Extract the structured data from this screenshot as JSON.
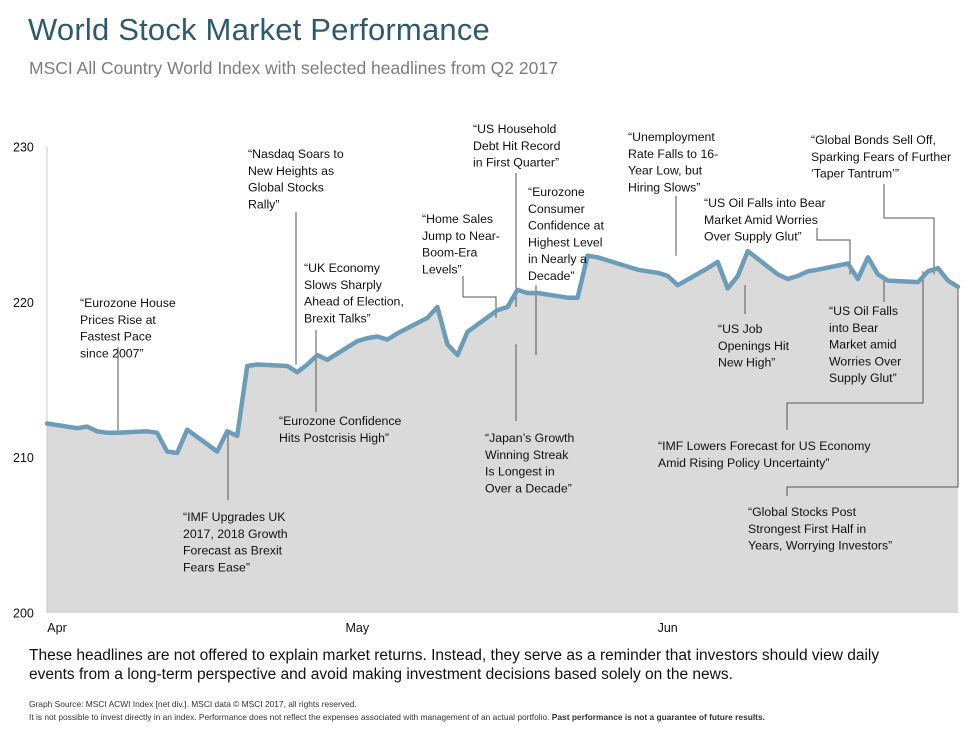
{
  "title": "World Stock Market Performance",
  "subtitle": "MSCI All Country World Index with selected headlines from Q2 2017",
  "note": "These headlines are not offered to explain market returns. Instead, they serve as a reminder that investors should view daily events from a long-term perspective and avoid making investment decisions based solely on the news.",
  "footer": {
    "source": "Graph Source: MSCI ACWI Index [net div.]. MSCI data © MSCI 2017, all rights reserved.",
    "disclaimer": "It is not possible to invest directly in an index. Performance does not reflect the expenses associated with management of an actual portfolio.",
    "disclaimer_bold": "Past performance is not a guarantee of future results."
  },
  "colors": {
    "line": "#6d9cb8",
    "fill": "#dadada",
    "connector": "#555555",
    "title": "#2e5a6e"
  },
  "chart_data": {
    "type": "area",
    "x": [
      "2017-03-31",
      "2017-04-03",
      "2017-04-04",
      "2017-04-05",
      "2017-04-06",
      "2017-04-07",
      "2017-04-10",
      "2017-04-11",
      "2017-04-12",
      "2017-04-13",
      "2017-04-14",
      "2017-04-17",
      "2017-04-18",
      "2017-04-19",
      "2017-04-20",
      "2017-04-21",
      "2017-04-24",
      "2017-04-25",
      "2017-04-26",
      "2017-04-27",
      "2017-04-28",
      "2017-05-01",
      "2017-05-02",
      "2017-05-03",
      "2017-05-04",
      "2017-05-05",
      "2017-05-08",
      "2017-05-09",
      "2017-05-10",
      "2017-05-11",
      "2017-05-12",
      "2017-05-15",
      "2017-05-16",
      "2017-05-17",
      "2017-05-18",
      "2017-05-19",
      "2017-05-22",
      "2017-05-23",
      "2017-05-24",
      "2017-05-25",
      "2017-05-26",
      "2017-05-29",
      "2017-05-30",
      "2017-05-31",
      "2017-06-01",
      "2017-06-02",
      "2017-06-05",
      "2017-06-06",
      "2017-06-07",
      "2017-06-08",
      "2017-06-09",
      "2017-06-12",
      "2017-06-13",
      "2017-06-14",
      "2017-06-15",
      "2017-06-16",
      "2017-06-19",
      "2017-06-20",
      "2017-06-21",
      "2017-06-22",
      "2017-06-23",
      "2017-06-26",
      "2017-06-27",
      "2017-06-28",
      "2017-06-29",
      "2017-06-30"
    ],
    "y": [
      212.2,
      211.9,
      212.0,
      211.7,
      211.6,
      211.6,
      211.7,
      211.6,
      210.4,
      210.3,
      211.8,
      210.4,
      211.7,
      211.4,
      215.9,
      216.0,
      215.9,
      215.5,
      216.0,
      216.6,
      216.3,
      217.5,
      217.7,
      217.8,
      217.6,
      218.0,
      219.0,
      219.7,
      217.3,
      216.6,
      218.1,
      219.5,
      219.7,
      220.8,
      220.6,
      220.6,
      220.3,
      220.3,
      223.0,
      222.9,
      222.7,
      222.1,
      222.0,
      221.9,
      221.7,
      221.1,
      222.2,
      222.6,
      220.9,
      221.7,
      223.3,
      221.8,
      221.5,
      221.7,
      222.0,
      222.1,
      222.5,
      221.5,
      222.9,
      221.8,
      221.4,
      221.3,
      222.0,
      222.2,
      221.4,
      221.0
    ],
    "x_ticks": [
      {
        "label": "Apr",
        "date": "2017-04-01"
      },
      {
        "label": "May",
        "date": "2017-05-01"
      },
      {
        "label": "Jun",
        "date": "2017-06-01"
      }
    ],
    "ylim": [
      200,
      230
    ],
    "y_ticks": [
      200,
      210,
      220,
      230
    ],
    "xlabel": "",
    "ylabel": "",
    "grid": false,
    "annotations": [
      {
        "date": "2017-04-05",
        "lines": [
          "“Eurozone House",
          "Prices Rise at",
          "Fastest Pace",
          "since 2007”"
        ]
      },
      {
        "date": "2017-04-11",
        "lines": [
          "“IMF Upgrades UK",
          "2017, 2018 Growth",
          "Forecast as Brexit",
          "Fears Ease”"
        ]
      },
      {
        "date": "2017-04-21",
        "lines": [
          "“Nasdaq Soars to",
          "New Heights as",
          "Global Stocks",
          "Rally”"
        ]
      },
      {
        "date": "2017-04-24",
        "lines": [
          "“Eurozone Confidence",
          "Hits Postcrisis High”"
        ]
      },
      {
        "date": "2017-04-24",
        "lines": [
          "“UK Economy",
          "Slows Sharply",
          "Ahead of Election,",
          "Brexit Talks”"
        ]
      },
      {
        "date": "2017-05-08",
        "lines": [
          "“Home Sales",
          "Jump to Near-",
          "Boom-Era",
          "Levels”"
        ]
      },
      {
        "date": "2017-05-09",
        "lines": [
          "“US Household",
          "Debt Hit Record",
          "in First Quarter”"
        ]
      },
      {
        "date": "2017-05-11",
        "lines": [
          "“Eurozone",
          "Consumer",
          "Confidence at",
          "Highest Level",
          "in Nearly a",
          "Decade”"
        ]
      },
      {
        "date": "2017-05-10",
        "lines": [
          "“Japan’s Growth",
          "Winning Streak",
          "Is Longest in",
          "Over a Decade”"
        ]
      },
      {
        "date": "2017-05-24",
        "lines": [
          "“Unemployment",
          "Rate Falls to 16-",
          "Year Low, but",
          "Hiring Slows”"
        ]
      },
      {
        "date": "2017-06-02",
        "lines": [
          "“US Job",
          "Openings Hit",
          "New High”"
        ]
      },
      {
        "date": "2017-06-12",
        "lines": [
          "“US Oil Falls into Bear",
          "Market Amid Worries",
          "Over Supply Glut”"
        ]
      },
      {
        "date": "2017-06-14",
        "lines": [
          "“US Oil Falls",
          "into Bear",
          "Market amid",
          "Worries Over",
          "Supply Glut”"
        ]
      },
      {
        "date": "2017-06-22",
        "lines": [
          "“Global Bonds Sell Off,",
          "Sparking Fears of Further",
          "‘Taper Tantrum’”"
        ]
      },
      {
        "date": "2017-06-27",
        "lines": [
          "“IMF Lowers Forecast for US Economy",
          "Amid Rising Policy Uncertainty”"
        ]
      },
      {
        "date": "2017-06-30",
        "lines": [
          "“Global Stocks Post",
          "Strongest First Half in",
          "Years, Worrying Investors”"
        ]
      }
    ]
  }
}
